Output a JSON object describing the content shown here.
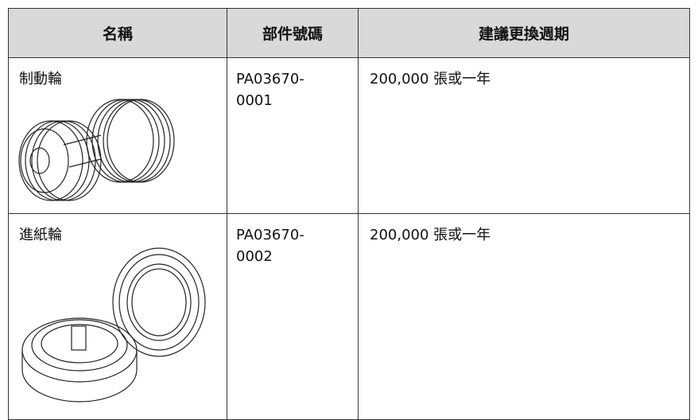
{
  "table": {
    "header": [
      "名稱",
      "部件號碼",
      "建議更換週期"
    ],
    "rows": [
      [
        "制動輪",
        "PA03670-0001",
        "200,000 張或一年"
      ],
      [
        "進紙輪",
        "PA03670-0002",
        "200,000 張或一年"
      ]
    ]
  }
}
